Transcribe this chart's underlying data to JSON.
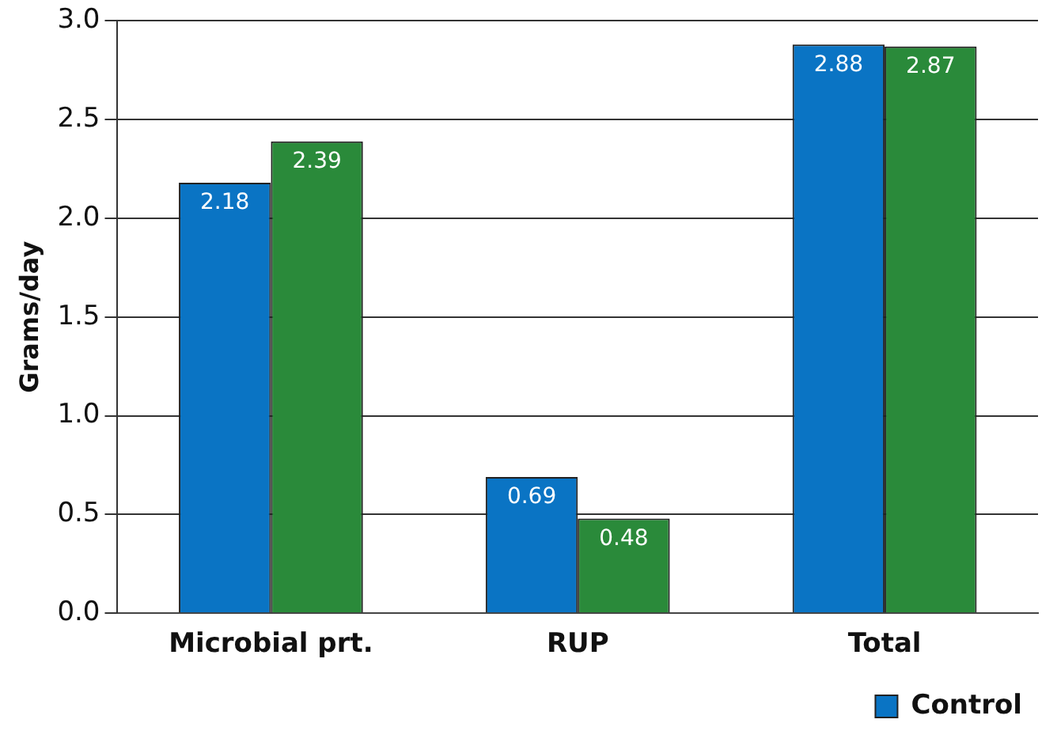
{
  "chart_data": {
    "type": "bar",
    "ylabel": "Grams/day",
    "categories": [
      "Microbial prt.",
      "RUP",
      "Total"
    ],
    "series": [
      {
        "name": "Control",
        "color": "#0a74c4",
        "values": [
          2.18,
          0.69,
          2.88
        ]
      },
      {
        "color": "#2a8a3a",
        "values": [
          2.39,
          0.48,
          2.87
        ]
      }
    ],
    "ylim": [
      0,
      3
    ],
    "yticks": [
      {
        "value": 0,
        "label": "0.0"
      },
      {
        "value": 0.5,
        "label": "0.5"
      },
      {
        "value": 1,
        "label": "1.0"
      },
      {
        "value": 1.5,
        "label": "1.5"
      },
      {
        "value": 2,
        "label": "2.0"
      },
      {
        "value": 2.5,
        "label": "2.5"
      },
      {
        "value": 3,
        "label": "3.0"
      }
    ],
    "grid": "y",
    "legend": "bottom right",
    "data_labels": true
  }
}
